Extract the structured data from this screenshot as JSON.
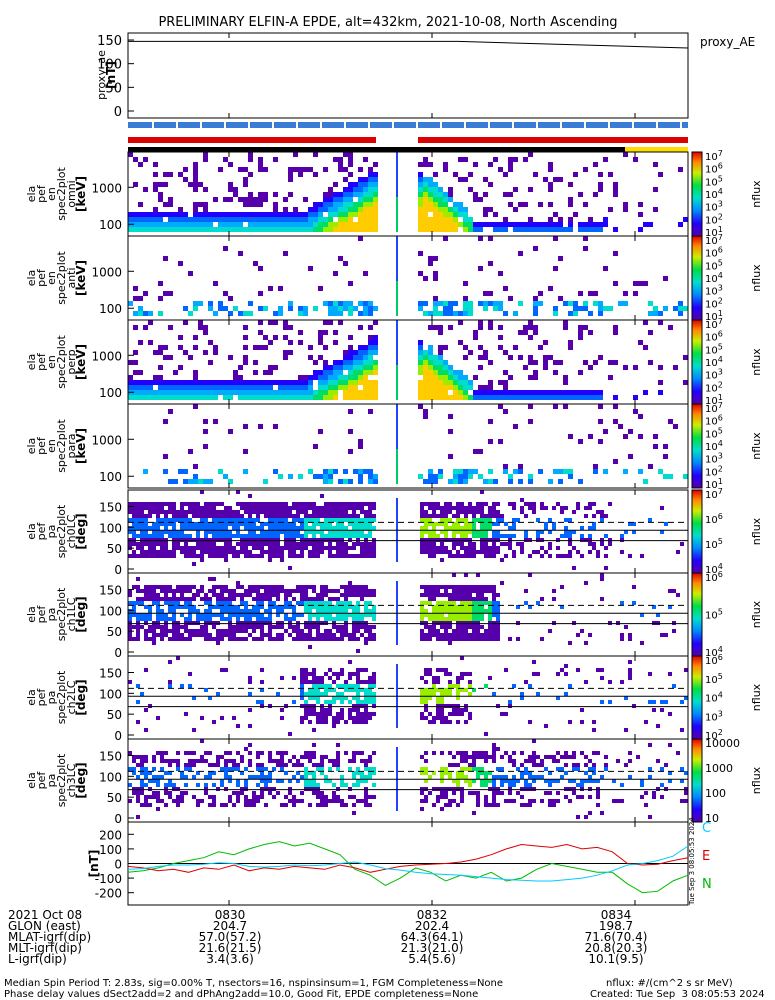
{
  "title": "PRELIMINARY ELFIN-A EPDE, alt=432km, 2021-10-08, North Ascending",
  "panels": {
    "ae": {
      "ylabel": [
        "proxy_ae",
        "[nT]"
      ],
      "ticks": [
        "150",
        "100",
        "50",
        "0"
      ],
      "legend": "proxy_AE"
    },
    "energy_ylabel": [
      "ela",
      "pef",
      "en",
      "spec2plot",
      "omni",
      "[keV]"
    ],
    "energy_ylabel_2": [
      "ela",
      "pef",
      "en",
      "spec2plot",
      "anti",
      "[keV]"
    ],
    "energy_ylabel_3": [
      "ela",
      "pef",
      "en",
      "spec2plot",
      "perp",
      "[keV]"
    ],
    "energy_ylabel_4": [
      "ela",
      "pef",
      "en",
      "spec2plot",
      "para",
      "[keV]"
    ],
    "energy_ticks": [
      "1000",
      "100"
    ],
    "pa_ylabels": [
      [
        "ela",
        "pef",
        "pa",
        "spec2plot",
        "ch0LC",
        "[deg]"
      ],
      [
        "ela",
        "pef",
        "pa",
        "spec2plot",
        "ch1LC",
        "[deg]"
      ],
      [
        "ela",
        "pef",
        "pa",
        "spec2plot",
        "ch2LC",
        "[deg]"
      ],
      [
        "ela",
        "pef",
        "pa",
        "spec2plot",
        "ch3LC",
        "[deg]"
      ]
    ],
    "pa_ticks": [
      "150",
      "100",
      "50",
      "0"
    ],
    "cbar_label": "nflux",
    "cbar_ticks_energy": [
      "10^7",
      "10^6",
      "10^5",
      "10^4",
      "10^3",
      "10^2",
      "10^1"
    ],
    "cbar_ticks_pa0": [
      "10^7",
      "10^6",
      "10^5",
      "10^4"
    ],
    "cbar_ticks_pa1": [
      "10^6",
      "10^5",
      "10^4"
    ],
    "cbar_ticks_pa2": [
      "10^6",
      "10^5",
      "10^4",
      "10^3",
      "10^2"
    ],
    "cbar_ticks_pa3": [
      "10000",
      "1000",
      "100",
      "10"
    ],
    "mag": {
      "ylabel": "[nT]",
      "ticks": [
        "200",
        "100",
        "0",
        "-100",
        "-200"
      ],
      "legend": [
        "C",
        "E",
        "N"
      ],
      "colors": [
        "#00ccff",
        "#dd0000",
        "#00bb00"
      ],
      "stamp": "Tue Sep  3 08:05:53 2024"
    }
  },
  "chart_data": {
    "type": "line",
    "title": "PRELIMINARY ELFIN-A EPDE, alt=432km, 2021-10-08, North Ascending",
    "x_ticks": [
      "0830",
      "0832",
      "0834"
    ],
    "proxy_ae": {
      "start": 147,
      "end": 133,
      "ylim": [
        0,
        150
      ]
    },
    "mag_ylim": [
      -250,
      250
    ],
    "series": [
      {
        "name": "C",
        "values": [
          -40,
          -35,
          -20,
          -10,
          -10,
          -5,
          5,
          0,
          -20,
          -25,
          -20,
          -10,
          -15,
          -10,
          0,
          10,
          -10,
          -35,
          -45,
          -60,
          -70,
          -75,
          -80,
          -90,
          -100,
          -110,
          -115,
          -120,
          -120,
          -110,
          -100,
          -80,
          -50,
          -10,
          0,
          20,
          50,
          120
        ]
      },
      {
        "name": "E",
        "values": [
          -20,
          -30,
          -50,
          -40,
          -60,
          -30,
          -40,
          -10,
          -50,
          -30,
          -40,
          -20,
          -30,
          -40,
          -10,
          -30,
          -60,
          -40,
          -20,
          -10,
          -5,
          0,
          10,
          30,
          60,
          100,
          130,
          120,
          110,
          130,
          100,
          110,
          80,
          0,
          -10,
          -5,
          20,
          40
        ]
      },
      {
        "name": "N",
        "values": [
          -60,
          -50,
          -30,
          0,
          20,
          40,
          80,
          60,
          100,
          130,
          150,
          120,
          140,
          100,
          60,
          -40,
          -80,
          -150,
          -100,
          -30,
          -60,
          -120,
          -80,
          -100,
          -60,
          -120,
          -100,
          -40,
          0,
          -20,
          -40,
          -60,
          -60,
          -140,
          -200,
          -190,
          -120,
          -80
        ]
      }
    ],
    "colorbar_ranges": {
      "energy": "1e1 to 1e7 nflux",
      "pa": "1e1 to 1e7 nflux"
    }
  },
  "bars": {
    "colors": {
      "science": "#3a7bd5",
      "red": "#dd0000",
      "black": "#000000",
      "yellow": "#ffdd00"
    }
  },
  "footer": {
    "rows": [
      {
        "label": "2021 Oct 08",
        "a": "0830",
        "b": "0832",
        "c": "0834"
      },
      {
        "label": "GLON (east)",
        "a": "204.7",
        "b": "202.4",
        "c": "198.7"
      },
      {
        "label": "MLAT-igrf(dip)",
        "a": "57.0(57.2)",
        "b": "64.3(64.1)",
        "c": "71.6(70.4)"
      },
      {
        "label": "MLT-igrf(dip)",
        "a": "21.6(21.5)",
        "b": "21.3(21.0)",
        "c": "20.8(20.3)"
      },
      {
        "label": "L-igrf(dip)",
        "a": "3.4(3.6)",
        "b": "5.4(5.6)",
        "c": "10.1(9.5)"
      }
    ],
    "note1": "Median Spin Period T: 2.83s, sig=0.00% T, nsectors=16, nspinsinsum=1, FGM Completeness=None",
    "note2": "Phase delay values dSect2add=2 and dPhAng2add=10.0, Good Fit, EPDE completeness=None",
    "units": "nflux: #/(cm^2 s sr MeV)",
    "created": "Created: Tue Sep  3 08:05:53 2024"
  }
}
